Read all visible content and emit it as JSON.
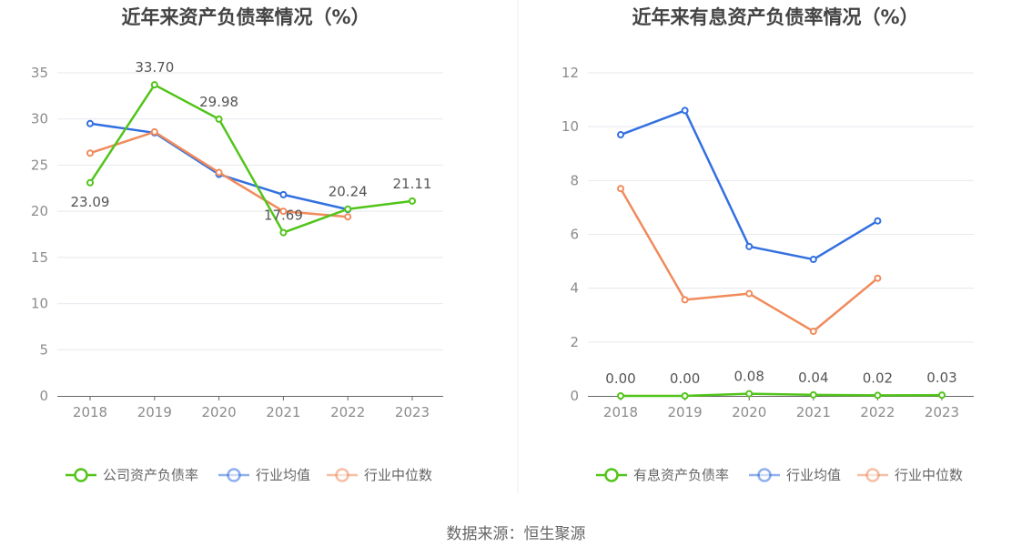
{
  "source_text": "数据来源：恒生聚源",
  "colors": {
    "company": "#52c41a",
    "average": "#3370e0",
    "median": "#f08b5c",
    "grid": "#e5e8ee",
    "axis": "#666666"
  },
  "chart_data": [
    {
      "type": "line",
      "title": "近年来资产负债率情况（%）",
      "categories": [
        "2018",
        "2019",
        "2020",
        "2021",
        "2022",
        "2023"
      ],
      "ylim": [
        0,
        35
      ],
      "yticks": [
        "0",
        "5",
        "10",
        "15",
        "20",
        "25",
        "30",
        "35"
      ],
      "grid": true,
      "legend_position": "bottom",
      "series": [
        {
          "name": "公司资产负债率",
          "key": "company",
          "values": [
            23.09,
            33.7,
            29.98,
            17.69,
            20.24,
            21.11
          ],
          "labels": [
            "23.09",
            "33.70",
            "29.98",
            "17.69",
            "20.24",
            "21.11"
          ]
        },
        {
          "name": "行业均值",
          "key": "average",
          "values": [
            29.5,
            28.5,
            24.0,
            21.8,
            20.2,
            null
          ]
        },
        {
          "name": "行业中位数",
          "key": "median",
          "values": [
            26.3,
            28.6,
            24.2,
            20.0,
            19.4,
            null
          ]
        }
      ]
    },
    {
      "type": "line",
      "title": "近年来有息资产负债率情况（%）",
      "categories": [
        "2018",
        "2019",
        "2020",
        "2021",
        "2022",
        "2023"
      ],
      "ylim": [
        0,
        12
      ],
      "yticks": [
        "0",
        "2",
        "4",
        "6",
        "8",
        "10",
        "12"
      ],
      "grid": true,
      "legend_position": "bottom",
      "series": [
        {
          "name": "有息资产负债率",
          "key": "company",
          "values": [
            0.0,
            0.0,
            0.08,
            0.04,
            0.02,
            0.03
          ],
          "labels": [
            "0.00",
            "0.00",
            "0.08",
            "0.04",
            "0.02",
            "0.03"
          ]
        },
        {
          "name": "行业均值",
          "key": "average",
          "values": [
            9.7,
            10.6,
            5.55,
            5.07,
            6.5,
            null
          ]
        },
        {
          "name": "行业中位数",
          "key": "median",
          "values": [
            7.7,
            3.57,
            3.8,
            2.4,
            4.37,
            null
          ]
        }
      ]
    }
  ]
}
